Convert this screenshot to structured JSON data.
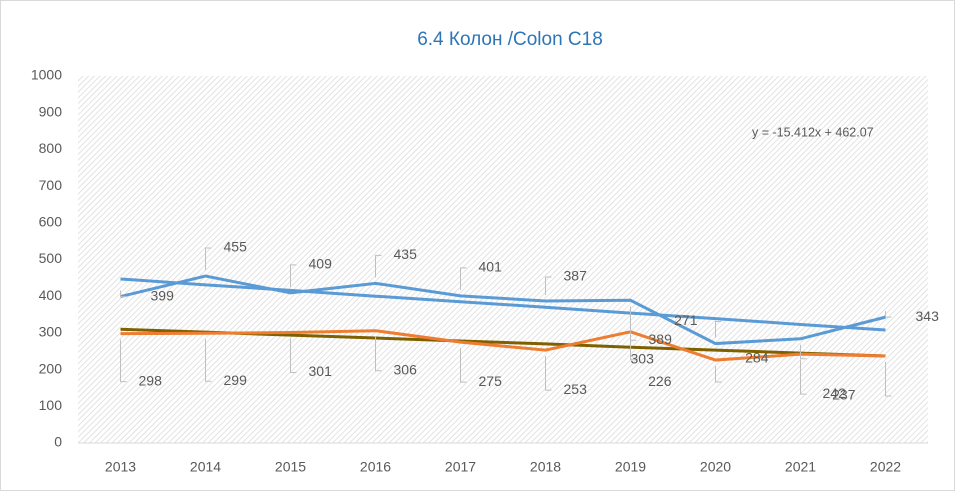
{
  "chart_data": {
    "type": "line",
    "title": "6.4 Колон /Colon C18",
    "annotation": "y = -15.412x + 462.07",
    "categories": [
      "2013",
      "2014",
      "2015",
      "2016",
      "2017",
      "2018",
      "2019",
      "2020",
      "2021",
      "2022"
    ],
    "series": [
      {
        "color": "#5b9bd5",
        "values": [
          399,
          455,
          409,
          435,
          401,
          387,
          389,
          271,
          284,
          343
        ]
      },
      {
        "color": "#ed7d31",
        "values": [
          298,
          299,
          301,
          306,
          275,
          253,
          303,
          226,
          242,
          237
        ]
      }
    ],
    "trendlines": [
      {
        "color": "#5b9bd5",
        "values": [
          447,
          431,
          416,
          400,
          385,
          370,
          354,
          339,
          323,
          308
        ]
      },
      {
        "color": "#7f6000",
        "values": [
          310,
          302,
          294,
          286,
          278,
          270,
          261,
          253,
          245,
          237
        ]
      }
    ],
    "ylim": [
      0,
      1000
    ],
    "yticks": [
      0,
      100,
      200,
      300,
      400,
      500,
      600,
      700,
      800,
      900,
      1000
    ],
    "grid": false
  }
}
